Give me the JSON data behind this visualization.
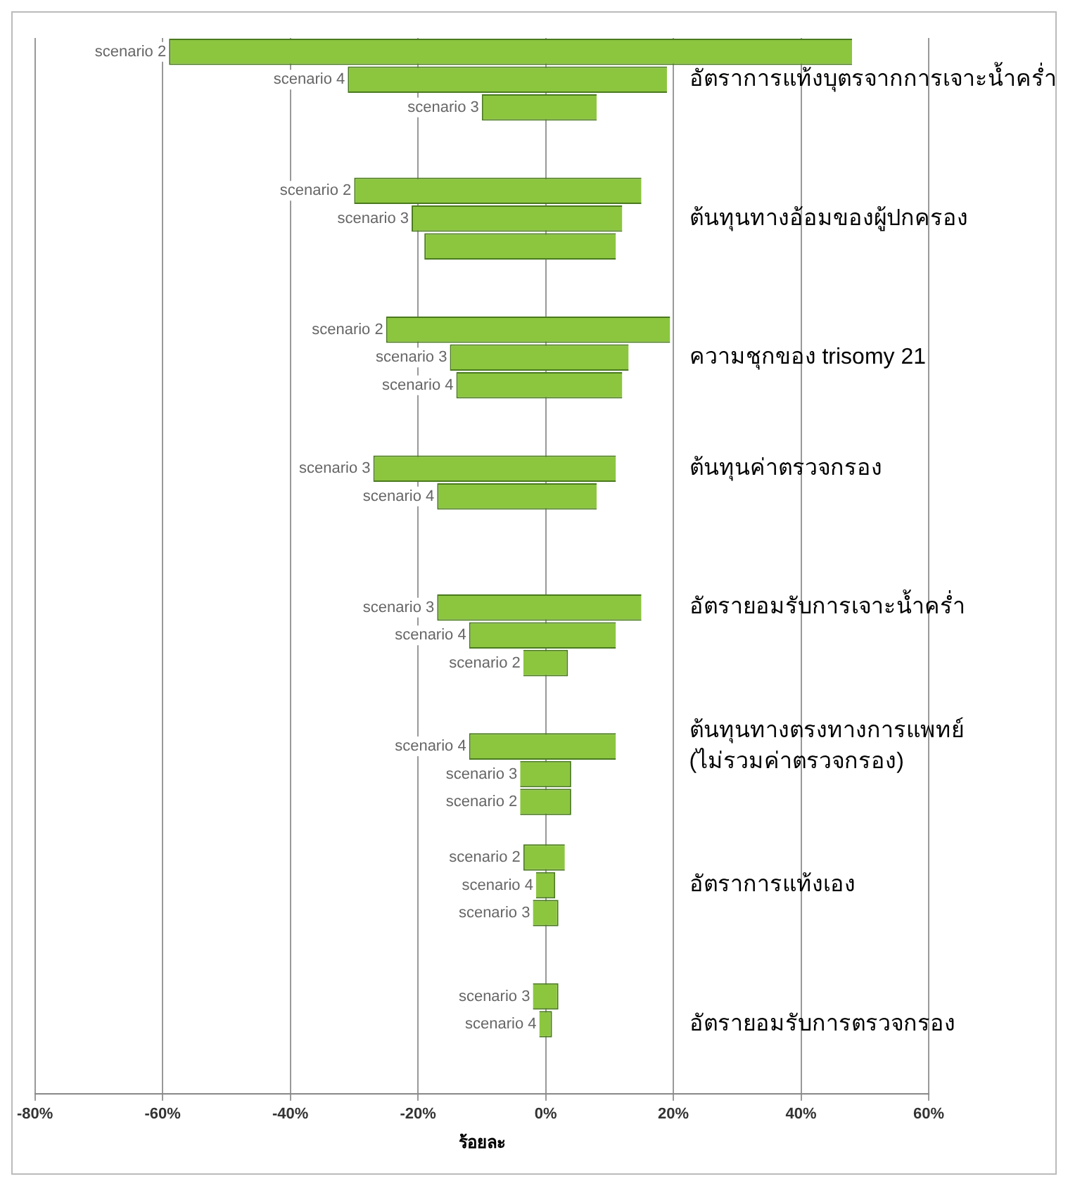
{
  "chart_data": {
    "type": "bar",
    "orientation": "horizontal",
    "xlabel": "ร้อยละ",
    "categories": [
      "scenario 2",
      "scenario 4",
      "scenario 3",
      null,
      null,
      "scenario 2",
      "scenario 3",
      null,
      null,
      null,
      "scenario 2",
      "scenario 3",
      "scenario 4",
      null,
      null,
      "scenario 3",
      "scenario 4",
      null,
      null,
      null,
      "scenario 3",
      "scenario 4",
      "scenario 2",
      null,
      null,
      "scenario 4",
      "scenario 3",
      "scenario 2",
      null,
      "scenario 2",
      "scenario 4",
      "scenario 3",
      null,
      null,
      "scenario 3",
      "scenario 4",
      null,
      null
    ],
    "y2_categories": [
      null,
      "อัตราการแท้งบุตรจากการเจาะน้ำคร่ำ",
      null,
      null,
      null,
      null,
      "ต้นทุนทางอ้อมของผู้ปกครอง",
      null,
      null,
      null,
      null,
      "ความชุกของ trisomy 21",
      null,
      null,
      null,
      "ต้นทุนค่าตรวจกรอง",
      null,
      null,
      null,
      null,
      "อัตรายอมรับการเจาะน้ำคร่ำ",
      null,
      null,
      null,
      null,
      "ต้นทุนทางตรงทางการแพทย์ (ไม่รวมค่าตรวจกรอง)",
      null,
      null,
      null,
      null,
      "อัตราการแท้งเอง",
      null,
      null,
      null,
      null,
      "อัตรายอมรับการตรวจกรอง",
      null,
      null
    ],
    "base": [
      -59,
      -31,
      -10,
      null,
      null,
      -30,
      -21,
      -19,
      null,
      null,
      -25,
      -15,
      -14,
      null,
      null,
      -27,
      -17,
      null,
      null,
      null,
      -17,
      -12,
      -3.5,
      null,
      null,
      -12,
      -4,
      -4,
      null,
      -3.5,
      -1.5,
      -2,
      null,
      null,
      -2,
      -1,
      null,
      null
    ],
    "values": [
      107,
      50,
      18,
      null,
      null,
      45,
      33,
      30,
      null,
      null,
      44.5,
      28,
      26,
      null,
      null,
      38,
      25,
      null,
      null,
      null,
      32,
      23,
      7,
      null,
      null,
      23,
      8,
      8,
      null,
      6.5,
      3,
      4,
      null,
      null,
      4,
      2,
      null,
      null
    ],
    "color": "#8cc63f",
    "xlim": [
      -80,
      60
    ],
    "xticks": [
      {
        "value": -80,
        "label": "-80%"
      },
      {
        "value": -60,
        "label": "-60%"
      },
      {
        "value": -40,
        "label": "-40%"
      },
      {
        "value": -20,
        "label": "-20%"
      },
      {
        "value": 0,
        "label": "0%"
      },
      {
        "value": 20,
        "label": "20%"
      },
      {
        "value": 40,
        "label": "40%"
      },
      {
        "value": 60,
        "label": "60%"
      }
    ],
    "grid": "x",
    "legend": false
  }
}
